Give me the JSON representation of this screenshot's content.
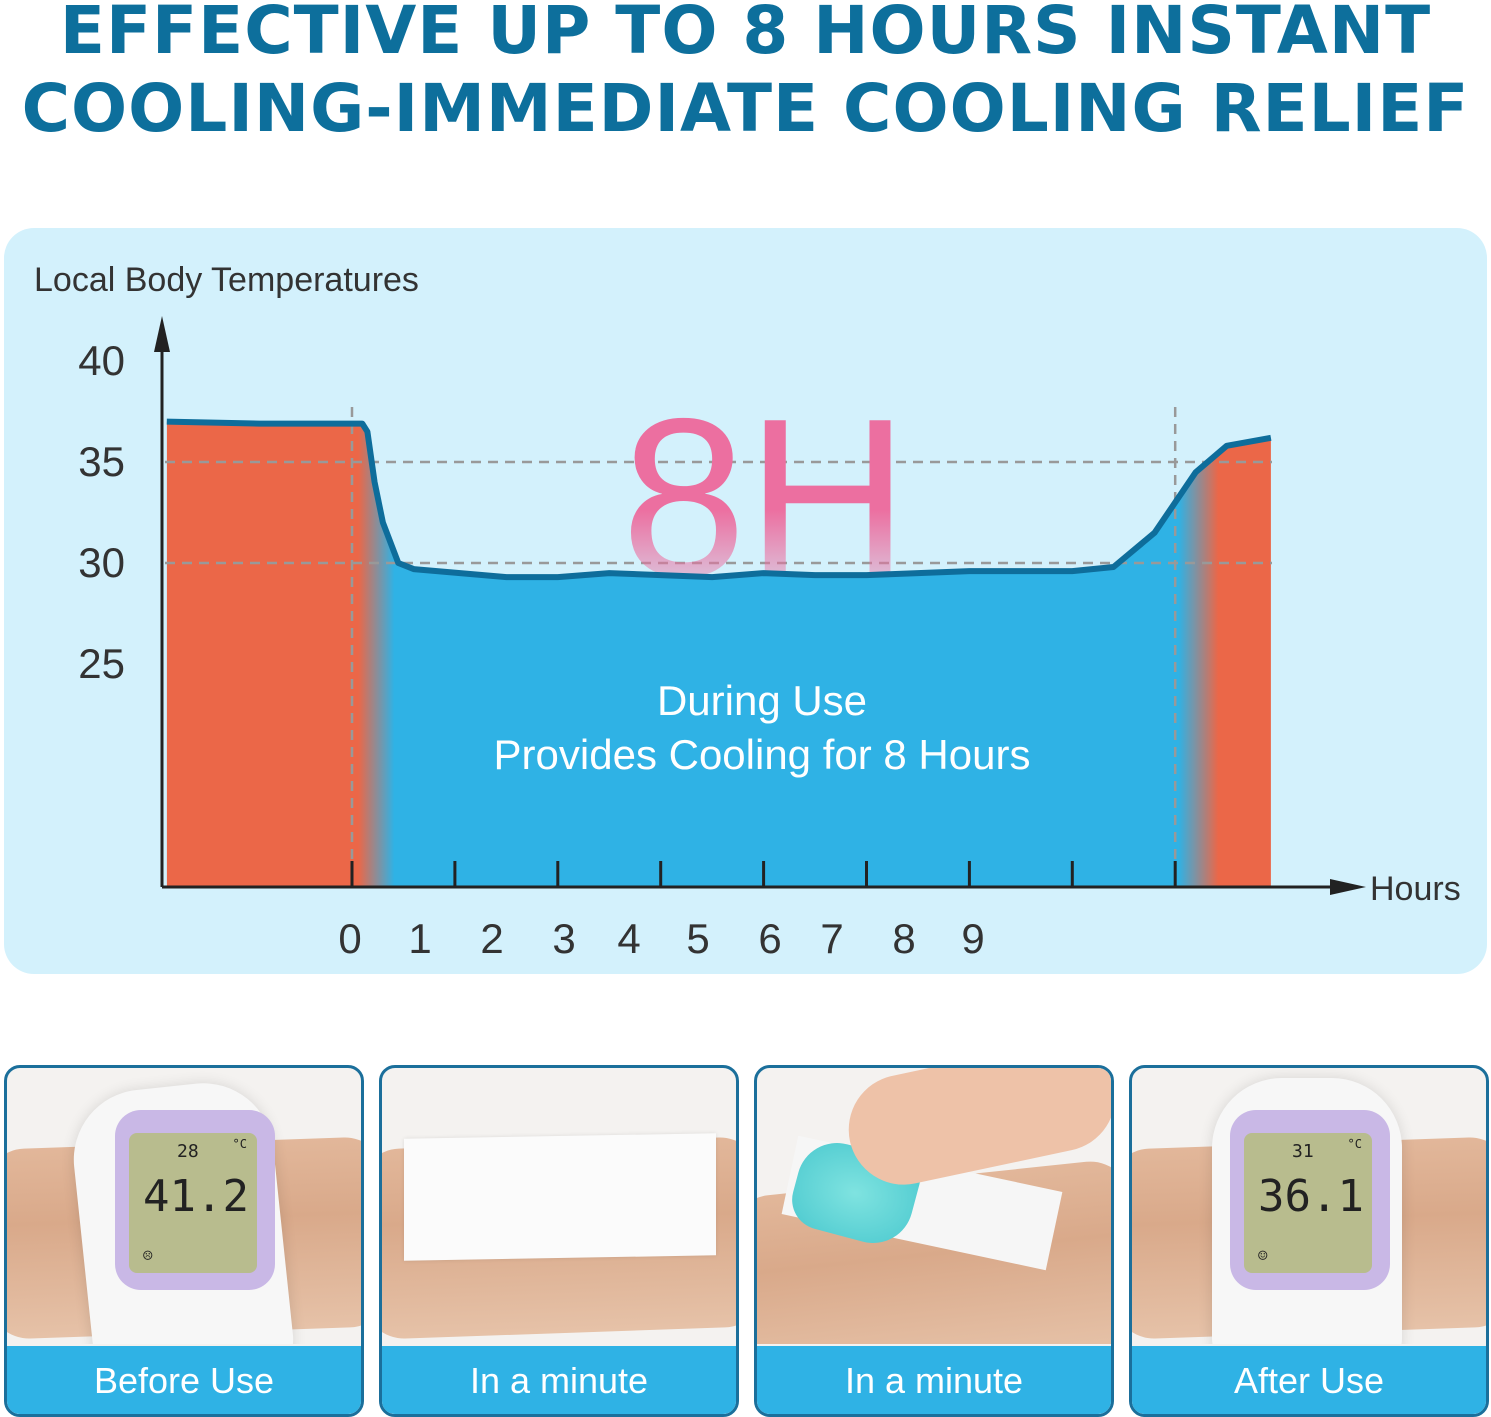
{
  "headline": {
    "line1": "EFFECTIVE UP TO 8 HOURS INSTANT",
    "line2": "COOLING-IMMEDIATE COOLING RELIEF"
  },
  "colors": {
    "headline": "#0d6f9c",
    "chart_bg": "#d3f1fc",
    "warm": "#eb6748",
    "cool": "#2fb2e5",
    "curve": "#0e6d9b",
    "big_label": "#ec6fa0",
    "caption_bg": "#2fb2e5"
  },
  "chart_data": {
    "type": "area",
    "ylabel": "Local Body Temperatures",
    "xlabel": "Hours",
    "yticks": [
      40,
      35,
      30,
      25
    ],
    "xticks": [
      "0",
      "1",
      "2",
      "3",
      "4",
      "5",
      "6",
      "7",
      "8",
      "9"
    ],
    "ylim": [
      14,
      42
    ],
    "grid_lines_y": [
      35,
      30
    ],
    "highlight": "8H",
    "annotation_line1": "During Use",
    "annotation_line2": "Provides Cooling for 8 Hours",
    "series": [
      {
        "x": [
          -1.8,
          -0.9,
          0.1,
          0.15,
          0.22,
          0.3,
          0.45,
          0.6,
          1.5,
          2,
          2.5,
          3,
          3.5,
          4,
          4.5,
          5,
          5.5,
          6,
          7,
          7.4,
          7.8,
          8.2,
          8.5,
          8.93
        ],
        "y": [
          37,
          36.9,
          36.9,
          36.5,
          34,
          32,
          30,
          29.7,
          29.3,
          29.3,
          29.5,
          29.4,
          29.3,
          29.5,
          29.4,
          29.4,
          29.5,
          29.6,
          29.6,
          29.8,
          31.5,
          34.5,
          35.8,
          36.2
        ]
      }
    ],
    "regions": [
      {
        "label": "before",
        "from": -1.8,
        "to": 0.1,
        "color": "warm"
      },
      {
        "label": "during",
        "from": 0.1,
        "to": 8.4,
        "color": "cool"
      },
      {
        "label": "after",
        "from": 8.4,
        "to": 8.93,
        "color": "warm"
      }
    ],
    "markers_x": [
      0,
      8
    ]
  },
  "panels": [
    {
      "caption": "Before Use",
      "reading_small": "28",
      "reading_main": "41.2",
      "unit": "°C"
    },
    {
      "caption": "In a minute"
    },
    {
      "caption": "In a minute"
    },
    {
      "caption": "After Use",
      "reading_small": "31",
      "reading_main": "36.1",
      "unit": "°C"
    }
  ]
}
